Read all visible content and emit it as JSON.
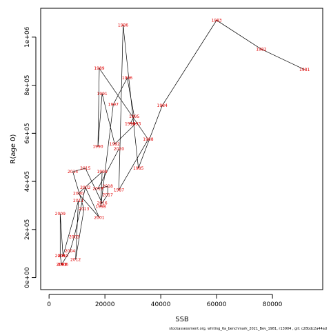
{
  "chart_data": {
    "type": "scatter",
    "xlabel": "SSB",
    "ylabel": "R(age 0)",
    "xlim": [
      -3000,
      98000
    ],
    "ylim": [
      -50000,
      1120000
    ],
    "xticks": [
      0,
      20000,
      40000,
      60000,
      80000
    ],
    "xtick_labels": [
      "0",
      "20000",
      "40000",
      "60000",
      "80000"
    ],
    "yticks": [
      0,
      200000,
      400000,
      600000,
      800000,
      1000000
    ],
    "ytick_labels": [
      "0e+00",
      "2e+05",
      "4e+05",
      "6e+05",
      "8e+05",
      "1e+06"
    ],
    "grid": false,
    "label_color": "#e00000",
    "line_color": "#000000",
    "footer": "stockassessment.org, whiting_6a_benchmark_2021_Bev_1981, r13904 , git: c28bdc2a44ad",
    "points": [
      {
        "year": "1981",
        "x": 91500,
        "y": 865000
      },
      {
        "year": "1982",
        "x": 76000,
        "y": 950000
      },
      {
        "year": "1983",
        "x": 60000,
        "y": 1070000
      },
      {
        "year": "1984",
        "x": 40500,
        "y": 715000
      },
      {
        "year": "1985",
        "x": 32000,
        "y": 455000
      },
      {
        "year": "1986",
        "x": 26500,
        "y": 1050000
      },
      {
        "year": "1987",
        "x": 25000,
        "y": 365000
      },
      {
        "year": "1988",
        "x": 35500,
        "y": 575000
      },
      {
        "year": "1989",
        "x": 18000,
        "y": 870000
      },
      {
        "year": "1990",
        "x": 17500,
        "y": 545000
      },
      {
        "year": "1991",
        "x": 19000,
        "y": 765000
      },
      {
        "year": "1992",
        "x": 23500,
        "y": 555000
      },
      {
        "year": "1993",
        "x": 31000,
        "y": 640000
      },
      {
        "year": "1994",
        "x": 29000,
        "y": 640000
      },
      {
        "year": "1995",
        "x": 30500,
        "y": 670000
      },
      {
        "year": "1996",
        "x": 28000,
        "y": 830000
      },
      {
        "year": "1997",
        "x": 23000,
        "y": 720000
      },
      {
        "year": "1998",
        "x": 18500,
        "y": 295000
      },
      {
        "year": "1999",
        "x": 19000,
        "y": 440000
      },
      {
        "year": "2000",
        "x": 10500,
        "y": 350000
      },
      {
        "year": "2001",
        "x": 18000,
        "y": 250000
      },
      {
        "year": "2002",
        "x": 13000,
        "y": 375000
      },
      {
        "year": "2003",
        "x": 9000,
        "y": 170000
      },
      {
        "year": "2004",
        "x": 7500,
        "y": 110000
      },
      {
        "year": "2005",
        "x": 4500,
        "y": 55000
      },
      {
        "year": "2006",
        "x": 5000,
        "y": 55000
      },
      {
        "year": "2007",
        "x": 4500,
        "y": 55000
      },
      {
        "year": "2008",
        "x": 4000,
        "y": 90000
      },
      {
        "year": "2009",
        "x": 4000,
        "y": 265000
      },
      {
        "year": "2010",
        "x": 5000,
        "y": 90000
      },
      {
        "year": "2011",
        "x": 10500,
        "y": 320000
      },
      {
        "year": "2012",
        "x": 9500,
        "y": 75000
      },
      {
        "year": "2013",
        "x": 12500,
        "y": 285000
      },
      {
        "year": "2014",
        "x": 8500,
        "y": 440000
      },
      {
        "year": "2015",
        "x": 13000,
        "y": 455000
      },
      {
        "year": "2016",
        "x": 19000,
        "y": 310000
      },
      {
        "year": "2017",
        "x": 21000,
        "y": 345000
      },
      {
        "year": "2018",
        "x": 21000,
        "y": 380000
      },
      {
        "year": "2019",
        "x": 17500,
        "y": 370000
      },
      {
        "year": "2020",
        "x": 25000,
        "y": 535000
      }
    ]
  }
}
